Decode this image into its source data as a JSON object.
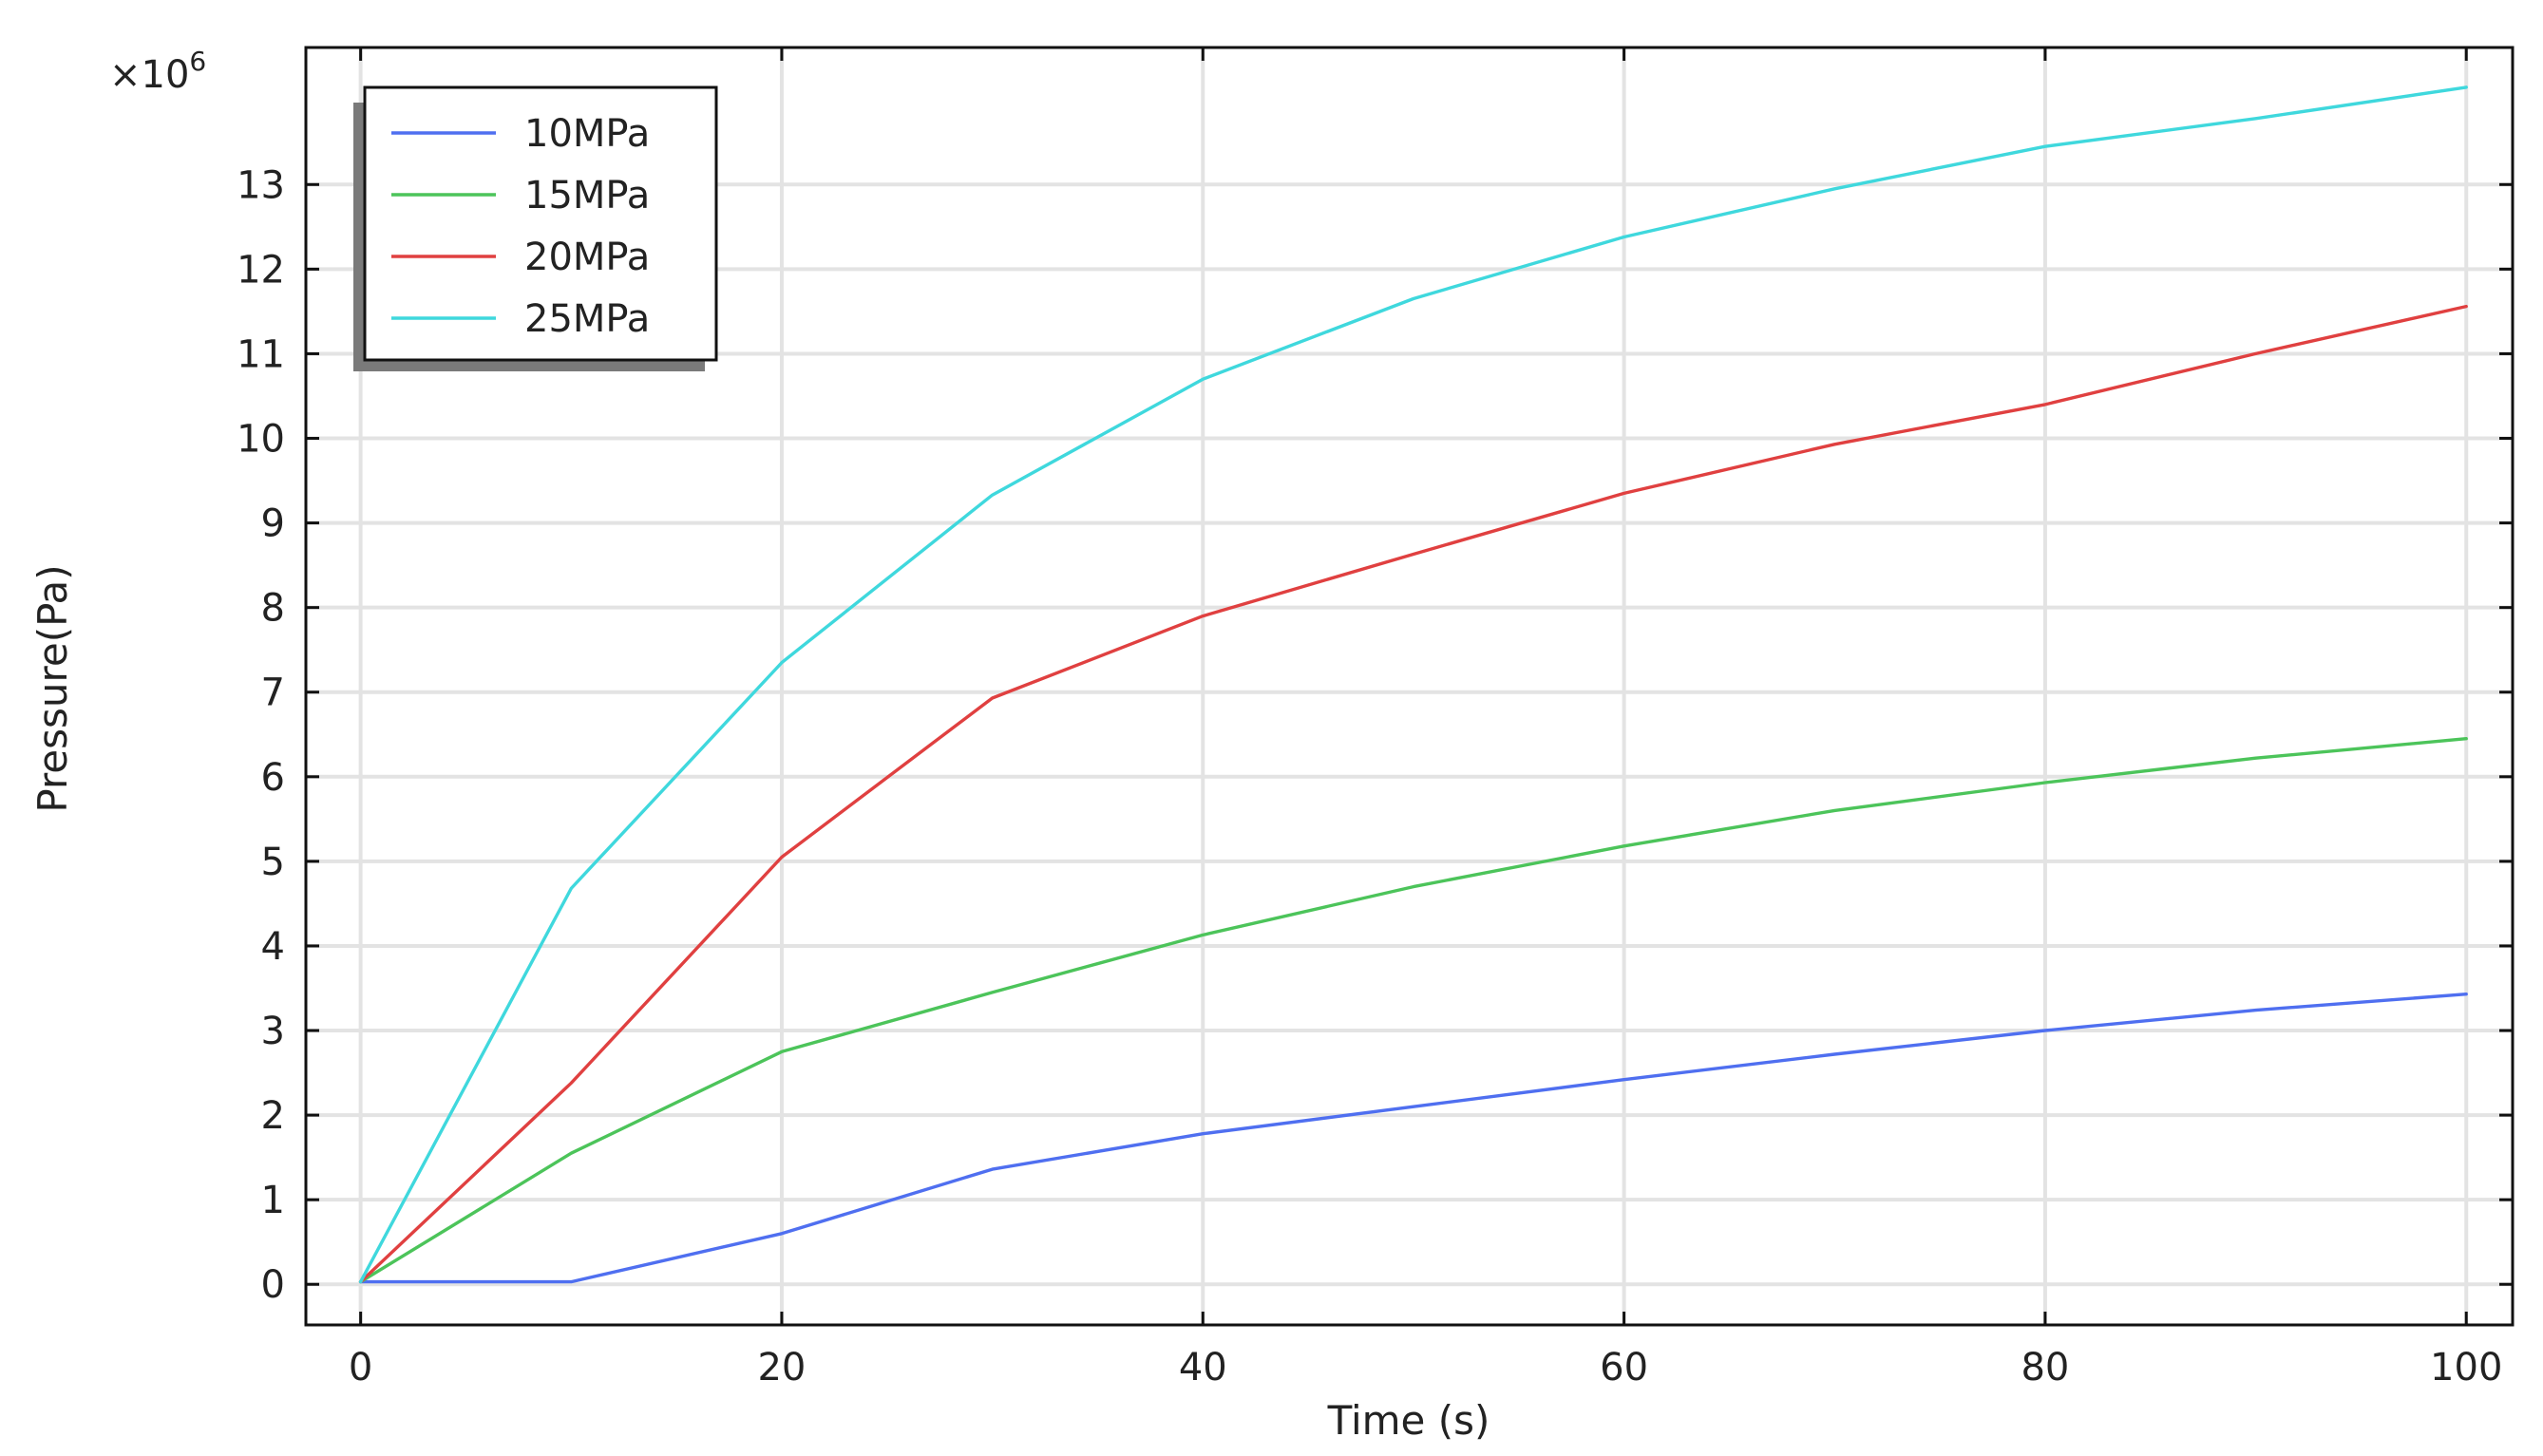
{
  "chart_data": {
    "type": "line",
    "xlabel": "Time (s)",
    "ylabel": "Pressure(Pa)",
    "y_multiplier": {
      "base": "×10",
      "exp": "6"
    },
    "xlim": [
      -2.6,
      102.2
    ],
    "ylim": [
      -0.48,
      14.62
    ],
    "x_ticks": [
      0,
      20,
      40,
      60,
      80,
      100
    ],
    "y_ticks": [
      0,
      1,
      2,
      3,
      4,
      5,
      6,
      7,
      8,
      9,
      10,
      11,
      12,
      13
    ],
    "grid": true,
    "legend_position": "top-left",
    "x": [
      0,
      10,
      20,
      30,
      40,
      50,
      60,
      70,
      80,
      90,
      100
    ],
    "series": [
      {
        "name": "10MPa",
        "color": "#4f6ff0",
        "values": [
          0.03,
          0.03,
          0.6,
          1.36,
          1.78,
          2.1,
          2.42,
          2.72,
          3.0,
          3.24,
          3.43
        ]
      },
      {
        "name": "15MPa",
        "color": "#4cc45a",
        "values": [
          0.03,
          1.55,
          2.75,
          3.45,
          4.13,
          4.7,
          5.18,
          5.6,
          5.93,
          6.22,
          6.45
        ]
      },
      {
        "name": "20MPa",
        "color": "#e04040",
        "values": [
          0.03,
          2.38,
          5.05,
          6.93,
          7.9,
          8.63,
          9.35,
          9.93,
          10.4,
          11.0,
          11.56
        ]
      },
      {
        "name": "25MPa",
        "color": "#3fd8dd",
        "values": [
          0.03,
          4.68,
          7.35,
          9.33,
          10.7,
          11.65,
          12.38,
          12.95,
          13.45,
          13.78,
          14.15
        ]
      }
    ]
  }
}
